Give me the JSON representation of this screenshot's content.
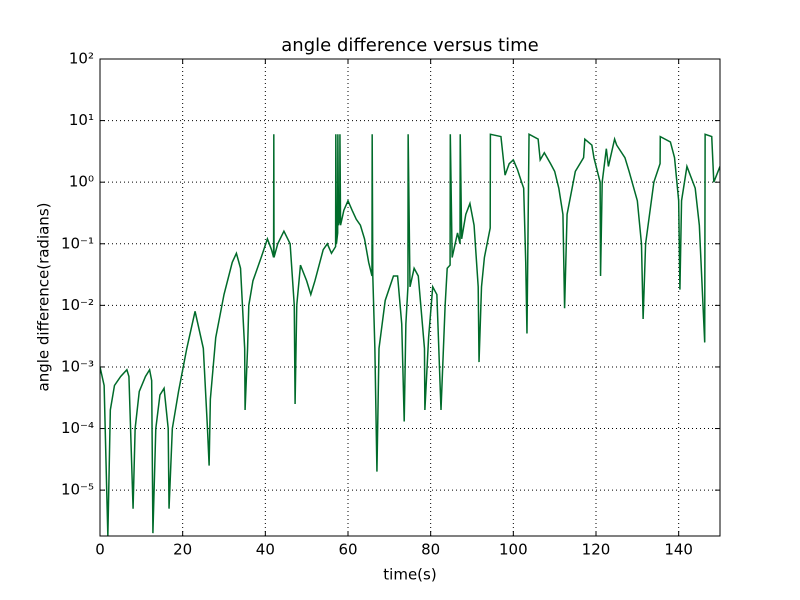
{
  "chart_data": {
    "type": "line",
    "title": "angle difference versus time",
    "xlabel": "time(s)",
    "ylabel": "angle difference(radians)",
    "log_y": true,
    "grid": true,
    "xlim": [
      0,
      150
    ],
    "xticks": [
      0,
      20,
      40,
      60,
      80,
      100,
      120,
      140
    ],
    "ylim": [
      1.8e-06,
      100
    ],
    "yticks": [
      {
        "value": 1e-05,
        "label": "10⁻⁵"
      },
      {
        "value": 0.0001,
        "label": "10⁻⁴"
      },
      {
        "value": 0.001,
        "label": "10⁻³"
      },
      {
        "value": 0.01,
        "label": "10⁻²"
      },
      {
        "value": 0.1,
        "label": "10⁻¹"
      },
      {
        "value": 1,
        "label": "10⁰"
      },
      {
        "value": 10,
        "label": "10¹"
      },
      {
        "value": 100,
        "label": "10²"
      }
    ],
    "series": [
      {
        "color": "#006b2a",
        "x": [
          0,
          1,
          1.9,
          2.5,
          3.5,
          5,
          6.5,
          7,
          8,
          8.5,
          9.5,
          11,
          12,
          12.5,
          12.8,
          13.5,
          14.5,
          15.5,
          16.5,
          16.7,
          17.5,
          19,
          21,
          23,
          25,
          26,
          26.4,
          26.7,
          28,
          30,
          32,
          33,
          34,
          35,
          35.1,
          35.7,
          36,
          37,
          39,
          40.5,
          41.5,
          42,
          42.05,
          42.1,
          43,
          44.5,
          46,
          47,
          47.2,
          47.6,
          48.5,
          50,
          51,
          52,
          54,
          55,
          56,
          57,
          57.05,
          57.2,
          57.5,
          57.55,
          57.7,
          58,
          58.05,
          58.2,
          59,
          60,
          61,
          62,
          63,
          64,
          65,
          65.8,
          65.85,
          66,
          66.5,
          67,
          67.5,
          69,
          71,
          72,
          73,
          73.6,
          74,
          74.5,
          74.55,
          75,
          76,
          77,
          78.5,
          78.6,
          79.5,
          80.5,
          81.5,
          82.5,
          83.5,
          84,
          84.7,
          84.75,
          85.2,
          86.5,
          87.1,
          87.15,
          87.5,
          88.5,
          89.5,
          90.5,
          91.5,
          91.7,
          92.3,
          93,
          94.4,
          94.45,
          97,
          98,
          99,
          100,
          101,
          102,
          102.5,
          103,
          103.3,
          103.8,
          106,
          106.5,
          107.5,
          109,
          110,
          111,
          112,
          112.4,
          113,
          115,
          117,
          117.3,
          119,
          119.5,
          121,
          121.1,
          121.5,
          122.5,
          123,
          124.5,
          125,
          127,
          128,
          130,
          131,
          131.4,
          132,
          134,
          135.5,
          135.55,
          138,
          139,
          140,
          140.3,
          140.7,
          142,
          144,
          145,
          146.3,
          146.4,
          148,
          148.5,
          150
        ],
        "values": [
          0.001,
          0.0005,
          1.8e-06,
          0.0002,
          0.0005,
          0.0007,
          0.0009,
          0.0007,
          5e-06,
          0.0001,
          0.0004,
          0.0007,
          0.0009,
          0.0006,
          2e-06,
          0.0001,
          0.00035,
          0.00045,
          0.0001,
          5e-06,
          0.0001,
          0.0004,
          0.002,
          0.008,
          0.002,
          0.0001,
          2.5e-05,
          0.0003,
          0.003,
          0.015,
          0.05,
          0.07,
          0.04,
          0.002,
          0.0002,
          0.002,
          0.01,
          0.025,
          0.06,
          0.12,
          0.08,
          0.06,
          6,
          0.06,
          0.1,
          0.16,
          0.1,
          0.01,
          0.00025,
          0.01,
          0.045,
          0.025,
          0.015,
          0.025,
          0.08,
          0.1,
          0.07,
          0.09,
          6,
          0.1,
          0.15,
          6,
          0.2,
          0.25,
          6,
          0.2,
          0.35,
          0.5,
          0.35,
          0.25,
          0.2,
          0.12,
          0.05,
          0.03,
          6,
          0.03,
          0.002,
          2e-05,
          0.002,
          0.012,
          0.03,
          0.03,
          0.005,
          0.00013,
          0.005,
          0.02,
          6,
          0.02,
          0.04,
          0.03,
          0.002,
          0.0002,
          0.003,
          0.02,
          0.015,
          0.0002,
          0.01,
          0.04,
          0.045,
          6,
          0.06,
          0.15,
          0.1,
          6,
          0.12,
          0.3,
          0.45,
          0.2,
          0.02,
          0.0012,
          0.02,
          0.06,
          0.18,
          6,
          5.5,
          1.3,
          2,
          2.3,
          1.6,
          1,
          0.8,
          0.05,
          0.0035,
          6,
          5,
          2.3,
          3,
          2,
          1.5,
          0.8,
          0.3,
          0.009,
          0.3,
          1.5,
          2.5,
          5,
          4,
          2.5,
          1,
          0.03,
          1,
          3.5,
          1.8,
          5,
          4,
          2.5,
          1.5,
          0.5,
          0.1,
          0.006,
          0.1,
          1,
          2,
          5.5,
          4.5,
          2.5,
          0.5,
          0.018,
          0.5,
          1.8,
          0.8,
          0.2,
          0.0025,
          6,
          5.5,
          1,
          1.8
        ]
      }
    ]
  }
}
